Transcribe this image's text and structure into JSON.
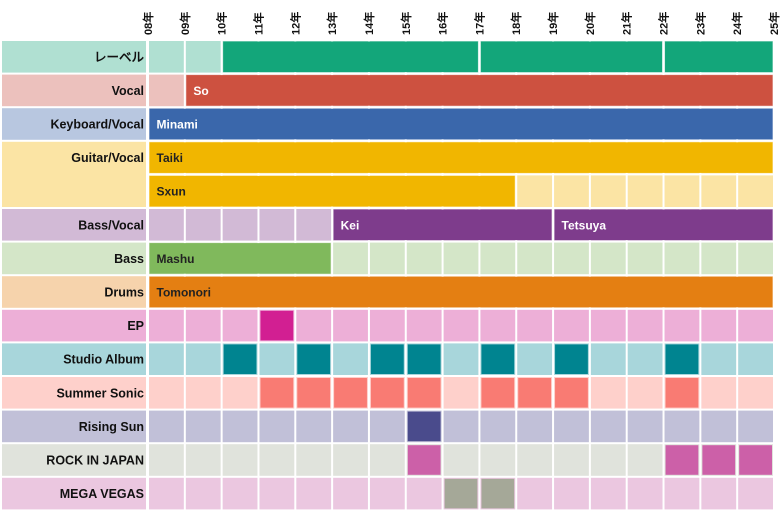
{
  "chart_data": {
    "type": "timeline",
    "title": "",
    "x_ticks": [
      "08年",
      "09年",
      "10年",
      "11年",
      "12年",
      "13年",
      "14年",
      "15年",
      "16年",
      "17年",
      "18年",
      "19年",
      "20年",
      "21年",
      "22年",
      "23年",
      "24年",
      "25年"
    ],
    "x_range": [
      2008,
      2025
    ],
    "grid": true,
    "rows": [
      {
        "label": "レーベル",
        "bg": "#b0e0d2",
        "lanes": [
          [
            {
              "name": "",
              "start": 2010,
              "end": 2017,
              "color": "#13a67a",
              "text_color": "#ffffff"
            },
            {
              "name": "",
              "start": 2017,
              "end": 2022,
              "color": "#13a67a",
              "text_color": "#ffffff"
            },
            {
              "name": "",
              "start": 2022,
              "end": 2025,
              "color": "#13a67a",
              "text_color": "#ffffff"
            }
          ]
        ]
      },
      {
        "label": "Vocal",
        "bg": "#ecc1bd",
        "lanes": [
          [
            {
              "name": "So",
              "start": 2009,
              "end": 2025,
              "color": "#cd5140",
              "text_color": "#ffffff"
            }
          ]
        ]
      },
      {
        "label": "Keyboard/Vocal",
        "bg": "#b8c7e0",
        "lanes": [
          [
            {
              "name": "Minami",
              "start": 2008,
              "end": 2025,
              "color": "#3a67ab",
              "text_color": "#ffffff"
            }
          ]
        ]
      },
      {
        "label": "Guitar/Vocal",
        "bg": "#fbe4a4",
        "lanes": [
          [
            {
              "name": "Taiki",
              "start": 2008,
              "end": 2025,
              "color": "#f1b600",
              "text_color": "#222222"
            }
          ],
          [
            {
              "name": "Sxun",
              "start": 2008,
              "end": 2018,
              "color": "#f1b600",
              "text_color": "#222222"
            }
          ]
        ]
      },
      {
        "label": "Bass/Vocal",
        "bg": "#d2bad6",
        "lanes": [
          [
            {
              "name": "Kei",
              "start": 2013,
              "end": 2019,
              "color": "#7e3c8c",
              "text_color": "#ffffff"
            },
            {
              "name": "Tetsuya",
              "start": 2019,
              "end": 2025,
              "color": "#7e3c8c",
              "text_color": "#ffffff"
            }
          ]
        ]
      },
      {
        "label": "Bass",
        "bg": "#d4e6c8",
        "lanes": [
          [
            {
              "name": "Mashu",
              "start": 2008,
              "end": 2013,
              "color": "#80b95c",
              "text_color": "#222222"
            }
          ]
        ]
      },
      {
        "label": "Drums",
        "bg": "#f6d3ac",
        "lanes": [
          [
            {
              "name": "Tomonori",
              "start": 2008,
              "end": 2025,
              "color": "#e47f12",
              "text_color": "#222222"
            }
          ]
        ]
      },
      {
        "label": "EP",
        "bg": "#edafd7",
        "color": "#d21f92",
        "years": [
          2011
        ]
      },
      {
        "label": "Studio Album",
        "bg": "#a8d6db",
        "color": "#008490",
        "years": [
          2010,
          2012,
          2014,
          2015,
          2017,
          2019,
          2022
        ]
      },
      {
        "label": "Summer Sonic",
        "bg": "#fed0cb",
        "color": "#f97b73",
        "years": [
          2011,
          2012,
          2013,
          2014,
          2015,
          2017,
          2018,
          2019,
          2022
        ]
      },
      {
        "label": "Rising Sun",
        "bg": "#c1c0d8",
        "color": "#4a4b8c",
        "years": [
          2015
        ]
      },
      {
        "label": "ROCK IN JAPAN",
        "bg": "#e0e3dc",
        "color": "#cc60a8",
        "years": [
          2015,
          2022,
          2023,
          2024
        ]
      },
      {
        "label": "MEGA VEGAS",
        "bg": "#ebc7e0",
        "color": "#a5a898",
        "years": [
          2016,
          2017
        ]
      }
    ]
  }
}
